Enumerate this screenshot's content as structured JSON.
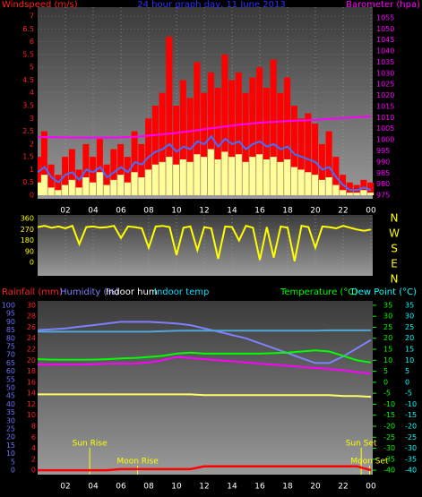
{
  "chart_data": [
    {
      "type": "bar",
      "title": "24 hour graph day, 11 June 2013",
      "y_label": "Windspeed (m/s)",
      "y2_label": "Barometer (hpa)",
      "x": [
        0,
        0.5,
        1,
        1.5,
        2,
        2.5,
        3,
        3.5,
        4,
        4.5,
        5,
        5.5,
        6,
        6.5,
        7,
        7.5,
        8,
        8.5,
        9,
        9.5,
        10,
        10.5,
        11,
        11.5,
        12,
        12.5,
        13,
        13.5,
        14,
        14.5,
        15,
        15.5,
        16,
        16.5,
        17,
        17.5,
        18,
        18.5,
        19,
        19.5,
        20,
        20.5,
        21,
        21.5,
        22,
        22.5,
        23,
        23.5,
        24
      ],
      "xlim": [
        0,
        24
      ],
      "xticks": [
        {
          "value": 2,
          "label": "02"
        },
        {
          "value": 4,
          "label": "04"
        },
        {
          "value": 6,
          "label": "06"
        },
        {
          "value": 8,
          "label": "08"
        },
        10,
        12,
        14,
        16,
        18,
        20,
        22,
        {
          "value": 24,
          "label": "00"
        }
      ],
      "ylim": [
        -0.14,
        7.35
      ],
      "yticks": [
        0,
        0.5,
        1,
        1.5,
        2,
        2.5,
        3,
        3.5,
        4,
        4.5,
        5,
        5.5,
        6,
        6.5,
        7
      ],
      "y2lim": [
        973.4,
        1059.8
      ],
      "y2ticks": [
        975,
        980,
        985,
        990,
        995,
        1000,
        1005,
        1010,
        1015,
        1020,
        1025,
        1030,
        1035,
        1040,
        1045,
        1050,
        1055
      ],
      "grid": true,
      "series": [
        {
          "type": "bar",
          "color": "#ff0000",
          "values": [
            1.5,
            2.5,
            1.2,
            0.8,
            1.5,
            1.8,
            1,
            2,
            1.5,
            2.2,
            1.2,
            1.8,
            2,
            1.5,
            2.5,
            2,
            3,
            3.5,
            4,
            6.2,
            3.5,
            4.5,
            3.8,
            5.2,
            4,
            4.8,
            4.2,
            5.5,
            4.5,
            4.8,
            4,
            4.6,
            5,
            4.2,
            5.3,
            4,
            4.6,
            3.5,
            3,
            3.2,
            2.8,
            2,
            2.5,
            1.5,
            0.8,
            0.5,
            0.4,
            0.6,
            0.5
          ]
        },
        {
          "type": "bar",
          "color": "#ffff99",
          "values": [
            0.5,
            0.8,
            0.3,
            0.2,
            0.4,
            0.6,
            0.3,
            0.7,
            0.5,
            0.9,
            0.4,
            0.6,
            0.8,
            0.5,
            0.9,
            0.7,
            1,
            1.2,
            1.3,
            1.5,
            1.2,
            1.4,
            1.3,
            1.6,
            1.5,
            1.8,
            1.4,
            1.7,
            1.5,
            1.6,
            1.3,
            1.5,
            1.6,
            1.4,
            1.5,
            1.3,
            1.4,
            1.1,
            1,
            0.9,
            0.8,
            0.6,
            0.7,
            0.4,
            0.2,
            0.1,
            0.1,
            0.2,
            0.1
          ]
        },
        {
          "type": "line",
          "color": "#4070ff",
          "values": [
            0.9,
            1.1,
            0.7,
            0.5,
            0.8,
            0.9,
            0.6,
            1,
            0.9,
            1.1,
            0.7,
            0.9,
            1.1,
            0.9,
            1.3,
            1.2,
            1.5,
            1.7,
            1.8,
            2,
            1.7,
            1.9,
            1.8,
            2.1,
            2,
            2.3,
            1.9,
            2.2,
            2,
            2.1,
            1.8,
            2,
            2.1,
            1.9,
            2,
            1.8,
            1.9,
            1.6,
            1.5,
            1.4,
            1.3,
            1,
            1.1,
            0.7,
            0.4,
            0.2,
            0.2,
            0.3,
            0.2
          ]
        },
        {
          "type": "line",
          "axis": "y2",
          "color": "#ff00ff",
          "values": [
            1001.3,
            1001.2,
            1001.2,
            1001.1,
            1001.1,
            1001,
            1001,
            1001,
            1001,
            1001,
            1001,
            1001,
            1001.1,
            1001.2,
            1001.4,
            1001.6,
            1001.9,
            1002.2,
            1002.5,
            1002.8,
            1003.1,
            1003.5,
            1003.9,
            1004.3,
            1004.8,
            1005.2,
            1005.6,
            1006,
            1006.4,
            1006.8,
            1007.1,
            1007.4,
            1007.7,
            1007.9,
            1008.1,
            1008.3,
            1008.4,
            1008.6,
            1008.7,
            1008.8,
            1009,
            1009.2,
            1009.4,
            1009.6,
            1009.8,
            1010,
            1010.2,
            1010.4,
            1010.6
          ]
        }
      ]
    },
    {
      "type": "line",
      "x": [
        0,
        0.5,
        1,
        1.5,
        2,
        2.5,
        3,
        3.5,
        4,
        4.5,
        5,
        5.5,
        6,
        6.5,
        7,
        7.5,
        8,
        8.5,
        9,
        9.5,
        10,
        10.5,
        11,
        11.5,
        12,
        12.5,
        13,
        13.5,
        14,
        14.5,
        15,
        15.5,
        16,
        16.5,
        17,
        17.5,
        18,
        18.5,
        19,
        19.5,
        20,
        20.5,
        21,
        21.5,
        22,
        22.5,
        23,
        23.5,
        24
      ],
      "xlim": [
        0,
        24
      ],
      "ylim": [
        -110,
        390
      ],
      "yticks": [
        0,
        90,
        180,
        270,
        360
      ],
      "compass_labels": [
        "N",
        "W",
        "S",
        "E",
        "N"
      ],
      "grid": true,
      "series": [
        {
          "type": "line",
          "color": "#ffff00",
          "values": [
            290,
            300,
            285,
            295,
            280,
            300,
            150,
            290,
            295,
            285,
            290,
            300,
            200,
            295,
            290,
            280,
            120,
            295,
            300,
            290,
            60,
            285,
            295,
            100,
            290,
            280,
            30,
            295,
            290,
            180,
            300,
            285,
            20,
            290,
            40,
            295,
            285,
            10,
            300,
            290,
            120,
            295,
            290,
            280,
            300,
            285,
            270,
            260,
            270
          ]
        }
      ]
    },
    {
      "type": "line",
      "x": [
        0,
        1,
        2,
        3,
        4,
        5,
        6,
        7,
        8,
        9,
        10,
        11,
        12,
        13,
        14,
        15,
        16,
        17,
        18,
        19,
        20,
        21,
        22,
        23,
        24
      ],
      "xlim": [
        0,
        24
      ],
      "xticks": [
        {
          "value": 2,
          "label": "02"
        },
        {
          "value": 4,
          "label": "04"
        },
        {
          "value": 6,
          "label": "06"
        },
        {
          "value": 8,
          "label": "08"
        },
        10,
        12,
        14,
        16,
        18,
        20,
        22,
        {
          "value": 24,
          "label": "00"
        }
      ],
      "ylim": [
        -2.7,
        102.7
      ],
      "yticks": [
        0,
        5,
        10,
        15,
        20,
        25,
        30,
        35,
        40,
        45,
        50,
        55,
        60,
        65,
        70,
        75,
        80,
        85,
        90,
        95,
        100
      ],
      "y2lim": [
        -42,
        37
      ],
      "y2ticks": [
        -40,
        -35,
        -30,
        -25,
        -20,
        -15,
        -10,
        -5,
        0,
        5,
        10,
        15,
        20,
        25,
        30,
        35
      ],
      "y3lim": [
        -0.8,
        30.8
      ],
      "y3ticks": [
        0,
        2,
        4,
        6,
        8,
        10,
        12,
        14,
        16,
        18,
        20,
        22,
        24,
        26,
        28,
        30
      ],
      "y4ticks": [
        -40,
        -35,
        -30,
        -25,
        -20,
        -15,
        -10,
        -5,
        0,
        5,
        10,
        15,
        20,
        25,
        30,
        35
      ],
      "annotations": [
        {
          "text": "Sun Rise",
          "x": 3.75
        },
        {
          "text": "Moon Rise",
          "x": 7.2
        },
        {
          "text": "Sun Set",
          "x": 23.3
        },
        {
          "text": "Moon Set",
          "x": 23.9
        }
      ],
      "series": [
        {
          "name": "Rainfall (mm)",
          "type": "line",
          "axis": "y3",
          "color": "#ff0000",
          "legend_color": "#ff2020",
          "values": [
            0,
            0,
            0,
            0,
            0,
            0,
            0.2,
            0.2,
            0.2,
            0.2,
            0.2,
            0.2,
            0.7,
            0.7,
            0.7,
            0.7,
            0.7,
            0.7,
            0.7,
            0.7,
            0.7,
            0.7,
            0.7,
            0.7,
            0
          ]
        },
        {
          "name": "Humidity (%)",
          "type": "line",
          "axis": "y",
          "color": "#8080ff",
          "legend_color": "#8080ff",
          "values": [
            85,
            85.5,
            86,
            87,
            88,
            89,
            90,
            90,
            90,
            89.5,
            89,
            88,
            86,
            84,
            82,
            80,
            77,
            74,
            71,
            68,
            65,
            65,
            69,
            74,
            79
          ]
        },
        {
          "name": "Indoor hum",
          "type": "line",
          "axis": "y",
          "color": "#ffff66",
          "legend_color": "#ffffff",
          "values": [
            46,
            46,
            46,
            46,
            46,
            46,
            46,
            46,
            46,
            46,
            46,
            46,
            45.5,
            45.5,
            45.5,
            45.5,
            45.5,
            45.5,
            45.5,
            45.5,
            45.5,
            45.5,
            45,
            45,
            44.5
          ]
        },
        {
          "name": "Indoor temp",
          "type": "line",
          "axis": "y2",
          "color": "#50a8d8",
          "legend_color": "#00e0ff",
          "values": [
            23,
            23,
            23,
            23,
            23,
            23,
            23,
            23,
            23,
            23.2,
            23.4,
            23.5,
            23.5,
            23.5,
            23.5,
            23.5,
            23.5,
            23.5,
            23.5,
            23.5,
            23.5,
            23.6,
            23.6,
            23.6,
            23.6
          ]
        },
        {
          "name": "Temperature (°C)",
          "type": "line",
          "axis": "y2",
          "color": "#00ff00",
          "legend_color": "#00ff00",
          "values": [
            10.5,
            10.3,
            10.2,
            10.2,
            10.3,
            10.5,
            10.8,
            11,
            11.5,
            12,
            13,
            13.5,
            13,
            13,
            13,
            13,
            13,
            13.2,
            13.5,
            14,
            14.5,
            14,
            12,
            10,
            9
          ]
        },
        {
          "name": "Dew Point (°C)",
          "type": "line",
          "axis": "y2",
          "color": "#ff00ff",
          "legend_color": "#00ffff",
          "values": [
            8,
            8,
            8,
            8,
            8.2,
            8.5,
            8.5,
            8.5,
            9,
            10,
            11.5,
            11,
            10.5,
            10,
            9.5,
            9,
            8.5,
            8,
            7.5,
            7,
            6.5,
            6,
            5.5,
            4.5,
            4
          ]
        }
      ]
    }
  ]
}
